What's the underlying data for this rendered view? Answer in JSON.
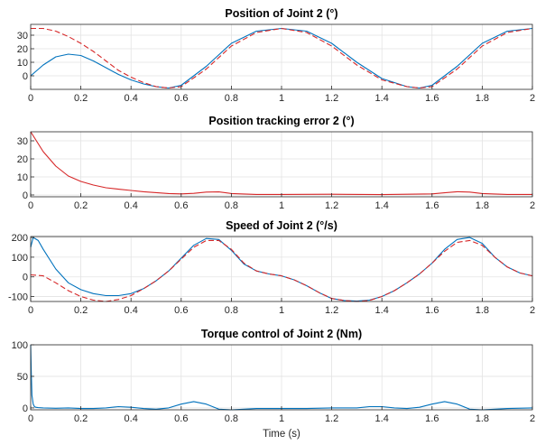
{
  "chart_data": [
    {
      "type": "line",
      "title": "Position of Joint 2 (°)",
      "xlim": [
        0,
        2
      ],
      "ylim": [
        -10,
        38
      ],
      "yticks": [
        0,
        10,
        20,
        30
      ],
      "xticks": [
        0,
        0.2,
        0.4,
        0.6,
        0.8,
        1,
        1.2,
        1.4,
        1.6,
        1.8,
        2
      ],
      "xticklabels": [
        "0",
        "0.2",
        "0.4",
        "0.6",
        "0.8",
        "1",
        "1.2",
        "1.4",
        "1.6",
        "1.8",
        "2"
      ],
      "grid": true,
      "series": [
        {
          "color": "#0072BD",
          "style": "solid",
          "x": [
            0,
            0.05,
            0.1,
            0.15,
            0.2,
            0.25,
            0.3,
            0.35,
            0.4,
            0.45,
            0.5,
            0.55,
            0.6,
            0.7,
            0.8,
            0.9,
            1.0,
            1.1,
            1.2,
            1.3,
            1.4,
            1.5,
            1.55,
            1.6,
            1.7,
            1.8,
            1.9,
            2.0
          ],
          "y": [
            0,
            8,
            14,
            16,
            15,
            11,
            6,
            1,
            -3,
            -6,
            -8,
            -9,
            -7,
            7,
            24,
            33,
            35,
            33,
            24,
            10,
            -2,
            -8,
            -9,
            -7,
            7,
            24,
            33,
            35
          ]
        },
        {
          "color": "#D62728",
          "style": "dashed",
          "x": [
            0,
            0.05,
            0.1,
            0.15,
            0.2,
            0.25,
            0.3,
            0.35,
            0.4,
            0.45,
            0.5,
            0.55,
            0.6,
            0.7,
            0.8,
            0.9,
            1.0,
            1.1,
            1.2,
            1.3,
            1.4,
            1.5,
            1.55,
            1.6,
            1.7,
            1.8,
            1.9,
            2.0
          ],
          "y": [
            35,
            35,
            33,
            29,
            24,
            18,
            11,
            4,
            -1,
            -5,
            -8,
            -9,
            -8,
            5,
            22,
            32,
            35,
            32,
            22,
            8,
            -3,
            -8,
            -9,
            -8,
            5,
            22,
            32,
            35
          ]
        }
      ]
    },
    {
      "type": "line",
      "title": "Position tracking error 2 (°)",
      "xlim": [
        0,
        2
      ],
      "ylim": [
        -1,
        35
      ],
      "yticks": [
        0,
        10,
        20,
        30
      ],
      "xticks": [
        0,
        0.2,
        0.4,
        0.6,
        0.8,
        1,
        1.2,
        1.4,
        1.6,
        1.8,
        2
      ],
      "xticklabels": [
        "0",
        "0.2",
        "0.4",
        "0.6",
        "0.8",
        "1",
        "1.2",
        "1.4",
        "1.6",
        "1.8",
        "2"
      ],
      "grid": true,
      "series": [
        {
          "color": "#D62728",
          "style": "solid",
          "x": [
            0,
            0.05,
            0.1,
            0.15,
            0.2,
            0.25,
            0.3,
            0.35,
            0.4,
            0.45,
            0.5,
            0.55,
            0.6,
            0.65,
            0.7,
            0.75,
            0.8,
            0.9,
            1.0,
            1.2,
            1.4,
            1.6,
            1.65,
            1.7,
            1.75,
            1.8,
            1.9,
            2.0
          ],
          "y": [
            35,
            24,
            16,
            10.5,
            7.5,
            5.5,
            4,
            3.2,
            2.5,
            1.8,
            1.3,
            0.8,
            0.6,
            0.9,
            1.6,
            1.7,
            0.8,
            0.3,
            0.3,
            0.4,
            0.2,
            0.6,
            1.2,
            1.8,
            1.6,
            0.8,
            0.3,
            0.3
          ]
        }
      ]
    },
    {
      "type": "line",
      "title": "Speed of Joint 2 (°/s)",
      "xlim": [
        0,
        2
      ],
      "ylim": [
        -125,
        205
      ],
      "yticks": [
        -100,
        0,
        100,
        200
      ],
      "xticks": [
        0,
        0.2,
        0.4,
        0.6,
        0.8,
        1,
        1.2,
        1.4,
        1.6,
        1.8,
        2
      ],
      "xticklabels": [
        "0",
        "0.2",
        "0.4",
        "0.6",
        "0.8",
        "1",
        "1.2",
        "1.4",
        "1.6",
        "1.8",
        "2"
      ],
      "grid": true,
      "series": [
        {
          "color": "#0072BD",
          "style": "solid",
          "x": [
            0,
            0.01,
            0.03,
            0.05,
            0.1,
            0.15,
            0.2,
            0.25,
            0.3,
            0.35,
            0.4,
            0.45,
            0.5,
            0.55,
            0.6,
            0.65,
            0.7,
            0.75,
            0.8,
            0.85,
            0.9,
            0.95,
            1.0,
            1.05,
            1.1,
            1.15,
            1.2,
            1.25,
            1.3,
            1.35,
            1.4,
            1.45,
            1.5,
            1.55,
            1.6,
            1.65,
            1.7,
            1.75,
            1.8,
            1.85,
            1.9,
            1.95,
            2.0
          ],
          "y": [
            150,
            200,
            185,
            140,
            40,
            -30,
            -65,
            -85,
            -95,
            -95,
            -85,
            -60,
            -20,
            30,
            95,
            160,
            195,
            190,
            135,
            65,
            30,
            15,
            5,
            -15,
            -45,
            -80,
            -110,
            -120,
            -123,
            -118,
            -100,
            -70,
            -30,
            15,
            70,
            140,
            190,
            200,
            170,
            100,
            50,
            20,
            5
          ]
        },
        {
          "color": "#D62728",
          "style": "dashed",
          "x": [
            0,
            0.05,
            0.1,
            0.15,
            0.2,
            0.25,
            0.3,
            0.35,
            0.4,
            0.45,
            0.5,
            0.55,
            0.6,
            0.65,
            0.7,
            0.75,
            0.8,
            0.85,
            0.9,
            0.95,
            1.0,
            1.05,
            1.1,
            1.15,
            1.2,
            1.25,
            1.3,
            1.35,
            1.4,
            1.45,
            1.5,
            1.55,
            1.6,
            1.65,
            1.7,
            1.75,
            1.8,
            1.85,
            1.9,
            1.95,
            2.0
          ],
          "y": [
            10,
            5,
            -30,
            -70,
            -100,
            -118,
            -125,
            -115,
            -95,
            -60,
            -20,
            30,
            90,
            150,
            185,
            185,
            140,
            70,
            30,
            15,
            5,
            -15,
            -45,
            -80,
            -110,
            -120,
            -125,
            -120,
            -100,
            -70,
            -30,
            15,
            70,
            130,
            175,
            185,
            160,
            100,
            50,
            20,
            5
          ]
        }
      ]
    },
    {
      "type": "line",
      "title": "Torque control of Joint 2 (Nm)",
      "xlabel": "Time (s)",
      "xlim": [
        0,
        2
      ],
      "ylim": [
        -3,
        100
      ],
      "yticks": [
        0,
        50,
        100
      ],
      "xticks": [
        0,
        0.2,
        0.4,
        0.6,
        0.8,
        1,
        1.2,
        1.4,
        1.6,
        1.8,
        2
      ],
      "xticklabels": [
        "0",
        "0.2",
        "0.4",
        "0.6",
        "0.8",
        "1",
        "1.2",
        "1.4",
        "1.6",
        "1.8",
        "2"
      ],
      "grid": true,
      "series": [
        {
          "color": "#0072BD",
          "style": "solid",
          "x": [
            0,
            0.002,
            0.005,
            0.01,
            0.015,
            0.02,
            0.03,
            0.05,
            0.1,
            0.15,
            0.2,
            0.25,
            0.3,
            0.35,
            0.4,
            0.45,
            0.5,
            0.55,
            0.6,
            0.65,
            0.7,
            0.75,
            0.8,
            0.85,
            0.9,
            1.0,
            1.1,
            1.2,
            1.3,
            1.35,
            1.4,
            1.45,
            1.5,
            1.55,
            1.6,
            1.65,
            1.7,
            1.75,
            1.8,
            1.85,
            1.9,
            2.0
          ],
          "y": [
            100,
            60,
            20,
            6,
            2,
            1,
            0.5,
            0,
            -0.5,
            0,
            -1,
            -1,
            0,
            2,
            1,
            -1,
            -2,
            0,
            6,
            10,
            6,
            -2,
            -3,
            -2,
            -1,
            -1,
            -1,
            0,
            0,
            2,
            2,
            0,
            -1,
            1,
            6,
            10,
            6,
            -2,
            -3,
            -2,
            -1,
            0
          ]
        }
      ]
    }
  ]
}
